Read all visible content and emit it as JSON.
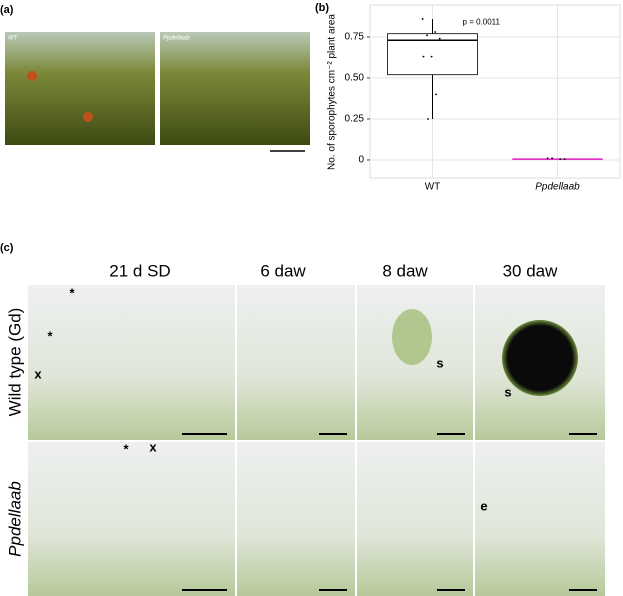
{
  "panel_a": {
    "label": "(a)",
    "image_labels": [
      "WT",
      "Ppdellaab"
    ]
  },
  "panel_b_label": "(b)",
  "chart_data": {
    "type": "box",
    "ylabel": "No. of sporophytes cm⁻² plant area",
    "categories": [
      "WT",
      "Ppdellaab"
    ],
    "annotation": "p = 0.0011",
    "boxes": [
      {
        "color": "#000000",
        "stats": [
          0.25,
          0.52,
          0.73,
          0.77,
          0.86
        ],
        "points": [
          0.86,
          0.78,
          0.76,
          0.74,
          0.63,
          0.63,
          0.4,
          0.25
        ]
      },
      {
        "color": "#e020c0",
        "stats": [
          0.005,
          0.005,
          0.005,
          0.005,
          0.005
        ],
        "points": [
          0.01,
          0.005,
          0.01,
          0.005
        ]
      }
    ],
    "ylim": [
      -0.11,
      0.945
    ],
    "yticks": [
      0,
      0.25,
      {
        "value": 0.5,
        "label": "0.50"
      },
      0.75
    ],
    "grid": true
  },
  "panel_c": {
    "label": "(c)",
    "columns": [
      "21 d SD",
      "6 daw",
      "8 daw",
      "30 daw"
    ],
    "rows": [
      "Wild type (Gd)",
      "Ppdellaab"
    ],
    "annotations": [
      "*",
      "*",
      "x",
      "s",
      "s",
      "*",
      "x",
      "e"
    ]
  }
}
